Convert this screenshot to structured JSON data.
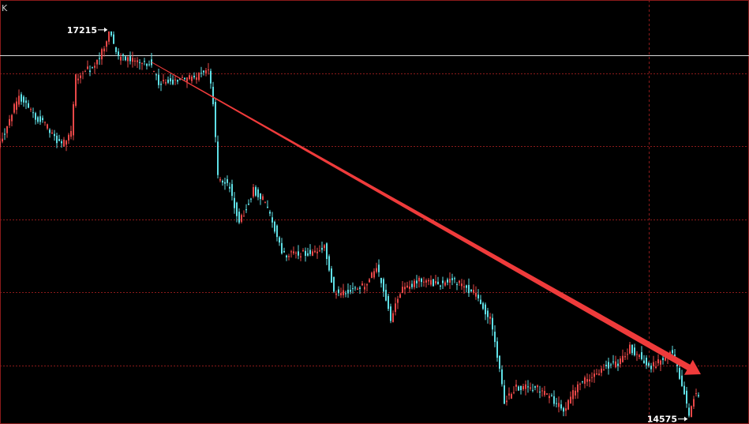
{
  "header": {
    "corner_label": "K"
  },
  "colors": {
    "background": "#000000",
    "grid": "#8b1a1a",
    "up_candle": "#e84848",
    "down_candle": "#5fe0e6",
    "trend_arrow": "#ef3b3b",
    "reference_line": "#d9d9d9",
    "label_text": "#ffffff"
  },
  "chart_data": {
    "type": "candlestick",
    "title": "",
    "xlabel": "",
    "ylabel": "",
    "ylim": [
      14530,
      17430
    ],
    "grid": true,
    "annotations": [
      {
        "text": "17215",
        "value": 17215,
        "bar_index": 46,
        "kind": "high"
      },
      {
        "text": "14575",
        "value": 14575,
        "bar_index": 291,
        "kind": "low"
      }
    ],
    "reference_level": 17050,
    "trend_arrow": {
      "from": {
        "bar_index": 64,
        "value": 17005
      },
      "to": {
        "bar_index": 296,
        "value": 14870
      }
    },
    "crosshair_bar_index": 274,
    "price_path": [
      [
        0,
        16450
      ],
      [
        8,
        16780
      ],
      [
        14,
        16650
      ],
      [
        20,
        16560
      ],
      [
        26,
        16430
      ],
      [
        30,
        16520
      ],
      [
        32,
        16900
      ],
      [
        40,
        16980
      ],
      [
        44,
        17100
      ],
      [
        46,
        17215
      ],
      [
        50,
        17040
      ],
      [
        58,
        17010
      ],
      [
        63,
        17000
      ],
      [
        67,
        16860
      ],
      [
        75,
        16880
      ],
      [
        82,
        16900
      ],
      [
        88,
        16950
      ],
      [
        90,
        16720
      ],
      [
        92,
        16220
      ],
      [
        97,
        16160
      ],
      [
        101,
        15900
      ],
      [
        107,
        16130
      ],
      [
        111,
        16070
      ],
      [
        115,
        15920
      ],
      [
        119,
        15690
      ],
      [
        124,
        15690
      ],
      [
        132,
        15700
      ],
      [
        137,
        15750
      ],
      [
        139,
        15600
      ],
      [
        141,
        15430
      ],
      [
        148,
        15440
      ],
      [
        155,
        15480
      ],
      [
        159,
        15600
      ],
      [
        162,
        15450
      ],
      [
        165,
        15250
      ],
      [
        170,
        15460
      ],
      [
        179,
        15520
      ],
      [
        185,
        15480
      ],
      [
        190,
        15520
      ],
      [
        195,
        15480
      ],
      [
        202,
        15400
      ],
      [
        207,
        15240
      ],
      [
        211,
        14920
      ],
      [
        213,
        14680
      ],
      [
        218,
        14780
      ],
      [
        226,
        14780
      ],
      [
        232,
        14720
      ],
      [
        238,
        14620
      ],
      [
        244,
        14800
      ],
      [
        250,
        14850
      ],
      [
        256,
        14930
      ],
      [
        261,
        14940
      ],
      [
        266,
        15050
      ],
      [
        270,
        15000
      ],
      [
        274,
        14920
      ],
      [
        279,
        14960
      ],
      [
        283,
        15030
      ],
      [
        286,
        14920
      ],
      [
        289,
        14740
      ],
      [
        291,
        14575
      ],
      [
        293,
        14720
      ],
      [
        296,
        14740
      ]
    ],
    "price_range": [
      14575,
      17215
    ],
    "bar_count": 296
  }
}
